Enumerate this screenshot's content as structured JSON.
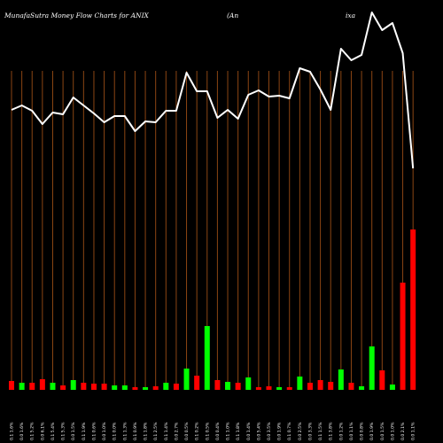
{
  "header": {
    "title": "MunafaSutra  Money Flow  Charts for ANIX",
    "company_left": "(An",
    "company_right": "ixa"
  },
  "chart_data": {
    "type": "bar",
    "title": "MunafaSutra  Money Flow  Charts for ANIX",
    "grid": "vertical",
    "categories": [
      "0.1 1.6%",
      "0.0 1.6%",
      "0.1 5.2%",
      "0.0 6.1%",
      "0.1 5.4%",
      "0.1 5.3%",
      "0.0 1.5%",
      "0.1 1.9%",
      "0.1 0.6%",
      "0.0 1.0%",
      "0.1 0.0%",
      "0.1 1.3%",
      "0.1 0.9%",
      "0.1 1.8%",
      "0.1 2.5%",
      "0.1 1.4%",
      "0.0 2.7%",
      "0.0 0.5%",
      "0.1 0.2%",
      "0.1 0.5%",
      "0.0 0.4%",
      "0.1 1.0%",
      "0.1 1.8%",
      "0.0 1.4%",
      "0.0 5.4%",
      "0.0 3.5%",
      "0.0 1.9%",
      "0.1 0.7%",
      "0.0 2.5%",
      "0.0 3.3%",
      "0.1 1.5%",
      "0.1 3.8%",
      "0.0 1.2%",
      "0.0 1.1%",
      "0.0 0.8%",
      "0.0 1.9%",
      "0.0 1.5%",
      "0.0 1.0%",
      "0.0 2.1%",
      "0.0 1.1%"
    ],
    "bars": [
      {
        "value": 10,
        "color": "red"
      },
      {
        "value": 8,
        "color": "green"
      },
      {
        "value": 8,
        "color": "red"
      },
      {
        "value": 12,
        "color": "red"
      },
      {
        "value": 8,
        "color": "green"
      },
      {
        "value": 5,
        "color": "red"
      },
      {
        "value": 11,
        "color": "green"
      },
      {
        "value": 8,
        "color": "red"
      },
      {
        "value": 7,
        "color": "red"
      },
      {
        "value": 7,
        "color": "red"
      },
      {
        "value": 5,
        "color": "green"
      },
      {
        "value": 5,
        "color": "green"
      },
      {
        "value": 3,
        "color": "red"
      },
      {
        "value": 3,
        "color": "green"
      },
      {
        "value": 4,
        "color": "red"
      },
      {
        "value": 8,
        "color": "green"
      },
      {
        "value": 7,
        "color": "red"
      },
      {
        "value": 24,
        "color": "green"
      },
      {
        "value": 16,
        "color": "red"
      },
      {
        "value": 72,
        "color": "green"
      },
      {
        "value": 11,
        "color": "red"
      },
      {
        "value": 9,
        "color": "green"
      },
      {
        "value": 8,
        "color": "red"
      },
      {
        "value": 14,
        "color": "green"
      },
      {
        "value": 3,
        "color": "red"
      },
      {
        "value": 4,
        "color": "red"
      },
      {
        "value": 3,
        "color": "green"
      },
      {
        "value": 3,
        "color": "red"
      },
      {
        "value": 15,
        "color": "green"
      },
      {
        "value": 8,
        "color": "red"
      },
      {
        "value": 11,
        "color": "red"
      },
      {
        "value": 9,
        "color": "red"
      },
      {
        "value": 23,
        "color": "green"
      },
      {
        "value": 8,
        "color": "red"
      },
      {
        "value": 4,
        "color": "green"
      },
      {
        "value": 49,
        "color": "green"
      },
      {
        "value": 22,
        "color": "red"
      },
      {
        "value": 6,
        "color": "green"
      },
      {
        "value": 121,
        "color": "red"
      },
      {
        "value": 181,
        "color": "red"
      }
    ],
    "line": [
      124,
      119,
      125,
      140,
      127,
      129,
      110,
      119,
      128,
      138,
      131,
      131,
      148,
      137,
      138,
      125,
      125,
      82,
      103,
      103,
      133,
      124,
      134,
      107,
      102,
      109,
      108,
      111,
      77,
      81,
      101,
      124,
      55,
      68,
      62,
      14,
      34,
      26,
      60,
      190
    ],
    "colors": {
      "background": "#000000",
      "grid": "#8B4513",
      "line": "#ffffff",
      "bar_green": "#00ff00",
      "bar_red": "#ff0000",
      "text": "#ffffff"
    }
  }
}
